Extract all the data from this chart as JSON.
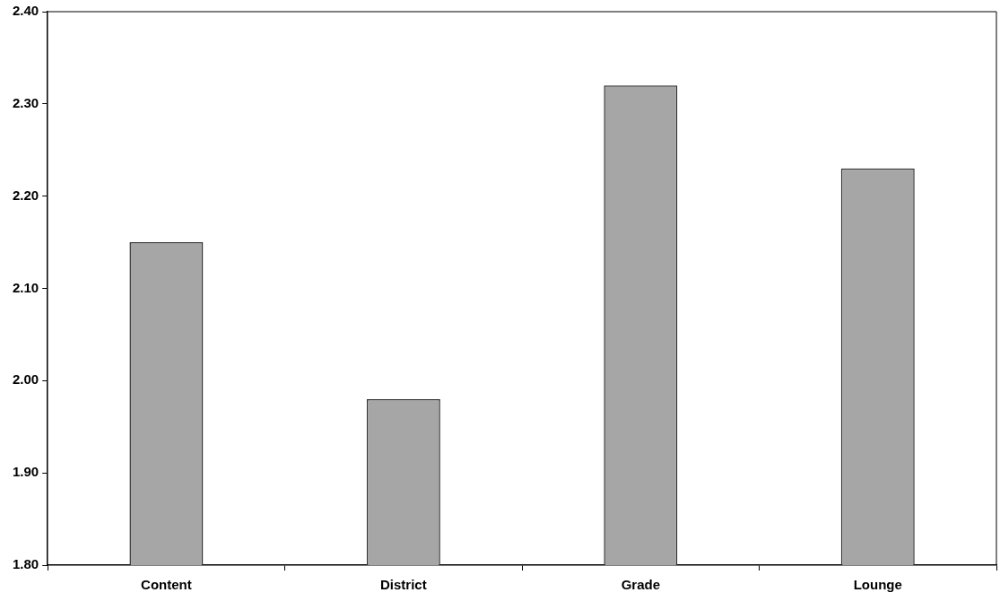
{
  "chart_data": {
    "type": "bar",
    "categories": [
      "Content",
      "District",
      "Grade",
      "Lounge"
    ],
    "values": [
      2.15,
      1.98,
      2.32,
      2.23
    ],
    "color": "#a6a6a6",
    "ylim": [
      1.8,
      2.4
    ],
    "yticks": [
      {
        "value": 1.8,
        "label": "1.80"
      },
      {
        "value": 1.9,
        "label": "1.90"
      },
      {
        "value": 2.0,
        "label": "2.00"
      },
      {
        "value": 2.1,
        "label": "2.10"
      },
      {
        "value": 2.2,
        "label": "2.20"
      },
      {
        "value": 2.3,
        "label": "2.30"
      },
      {
        "value": 2.4,
        "label": "2.40"
      }
    ],
    "grid": false,
    "legend": false
  }
}
